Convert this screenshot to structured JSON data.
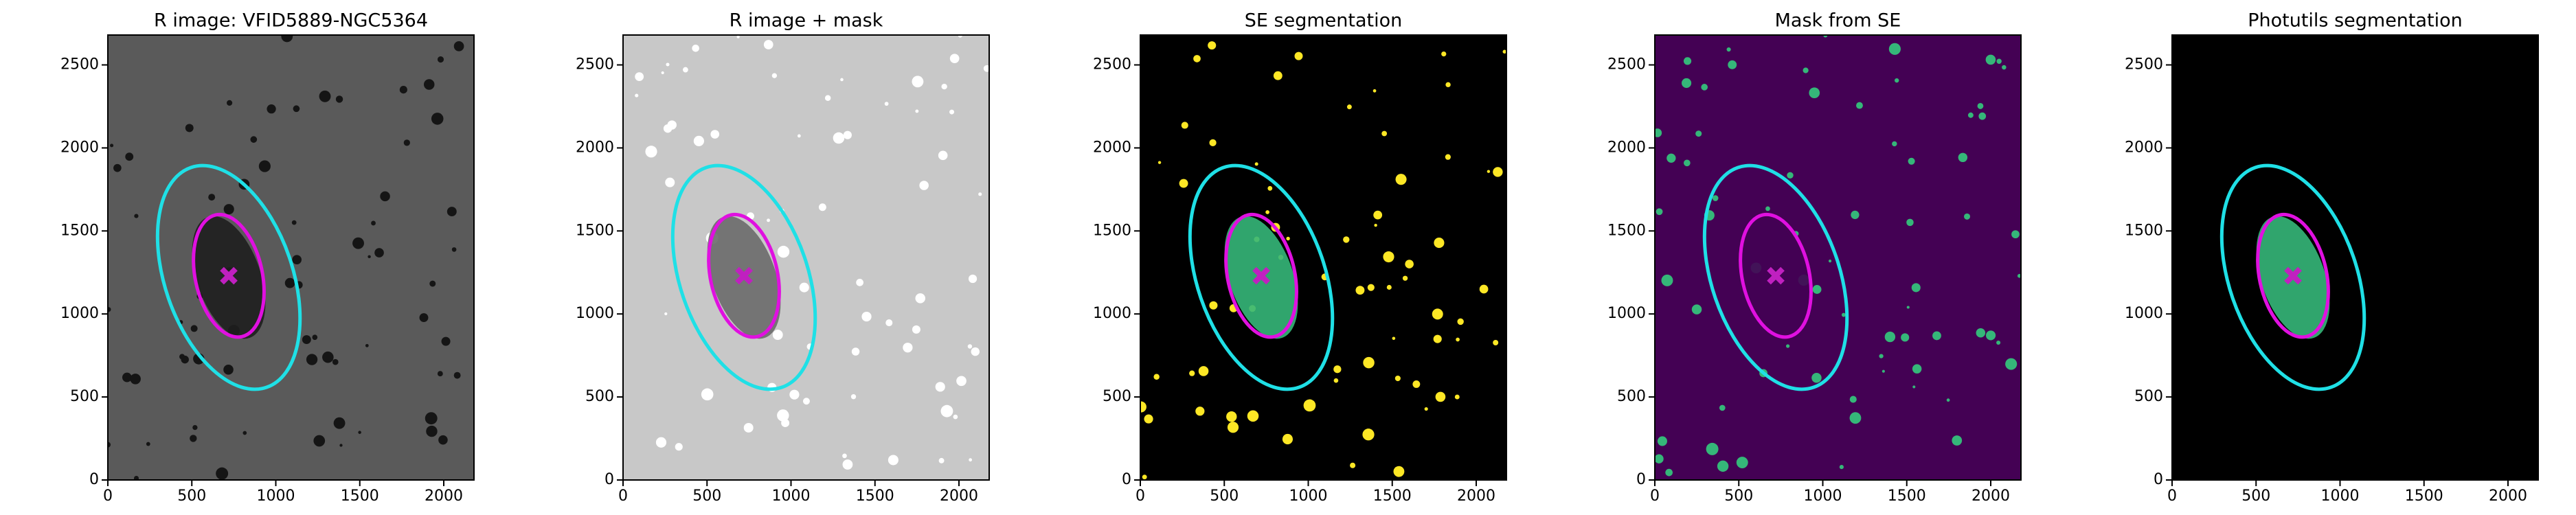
{
  "chart_data": [
    {
      "type": "image",
      "title": "R image: VFID5889-NGC5364",
      "background": "#5a5a5a",
      "blob_color": "#1e1e1e",
      "dot_color": "#151515",
      "xlim": [
        0,
        2180
      ],
      "ylim": [
        0,
        2680
      ],
      "xticks": [
        0,
        500,
        1000,
        1500,
        2000
      ],
      "yticks": [
        0,
        500,
        1000,
        1500,
        2000,
        2500
      ],
      "ellipses": [
        {
          "color": "#1fe0e6",
          "center": [
            720,
            1220
          ],
          "semi_axes": [
            380,
            700
          ],
          "angle": -19
        },
        {
          "color": "#e010e0",
          "center": [
            720,
            1230
          ],
          "semi_axes": [
            200,
            375
          ],
          "angle": -12
        }
      ],
      "marker": {
        "color": "#c020c0",
        "position": [
          720,
          1230
        ]
      }
    },
    {
      "type": "image",
      "title": "R image + mask",
      "background": "#c8c8c8",
      "blob_color": "#6a6a6a",
      "dot_color": "#ffffff",
      "xlim": [
        0,
        2180
      ],
      "ylim": [
        0,
        2680
      ],
      "xticks": [
        0,
        500,
        1000,
        1500,
        2000
      ],
      "yticks": [
        0,
        500,
        1000,
        1500,
        2000,
        2500
      ],
      "ellipses": [
        {
          "color": "#1fe0e6",
          "center": [
            720,
            1220
          ],
          "semi_axes": [
            380,
            700
          ],
          "angle": -19
        },
        {
          "color": "#e010e0",
          "center": [
            720,
            1230
          ],
          "semi_axes": [
            200,
            375
          ],
          "angle": -12
        }
      ],
      "marker": {
        "color": "#c020c0",
        "position": [
          720,
          1230
        ]
      }
    },
    {
      "type": "image",
      "title": "SE segmentation",
      "background": "#000000",
      "blob_color": "#35b779",
      "dot_color": "#fde725",
      "xlim": [
        0,
        2180
      ],
      "ylim": [
        0,
        2680
      ],
      "xticks": [
        0,
        500,
        1000,
        1500,
        2000
      ],
      "yticks": [
        0,
        500,
        1000,
        1500,
        2000,
        2500
      ],
      "ellipses": [
        {
          "color": "#1fe0e6",
          "center": [
            720,
            1220
          ],
          "semi_axes": [
            380,
            700
          ],
          "angle": -19
        },
        {
          "color": "#e010e0",
          "center": [
            720,
            1230
          ],
          "semi_axes": [
            200,
            375
          ],
          "angle": -12
        }
      ],
      "marker": {
        "color": "#c020c0",
        "position": [
          720,
          1230
        ]
      }
    },
    {
      "type": "image",
      "title": "Mask from SE",
      "background": "#440154",
      "blob_color": "#440154",
      "dot_color": "#35b779",
      "xlim": [
        0,
        2180
      ],
      "ylim": [
        0,
        2680
      ],
      "xticks": [
        0,
        500,
        1000,
        1500,
        2000
      ],
      "yticks": [
        0,
        500,
        1000,
        1500,
        2000,
        2500
      ],
      "ellipses": [
        {
          "color": "#1fe0e6",
          "center": [
            720,
            1220
          ],
          "semi_axes": [
            380,
            700
          ],
          "angle": -19
        },
        {
          "color": "#e010e0",
          "center": [
            720,
            1230
          ],
          "semi_axes": [
            200,
            375
          ],
          "angle": -12
        }
      ],
      "marker": {
        "color": "#c020c0",
        "position": [
          720,
          1230
        ]
      }
    },
    {
      "type": "image",
      "title": "Photutils segmentation",
      "background": "#000000",
      "blob_color": "#35b779",
      "dot_color": "#000000",
      "xlim": [
        0,
        2180
      ],
      "ylim": [
        0,
        2680
      ],
      "xticks": [
        0,
        500,
        1000,
        1500,
        2000
      ],
      "yticks": [
        0,
        500,
        1000,
        1500,
        2000,
        2500
      ],
      "ellipses": [
        {
          "color": "#1fe0e6",
          "center": [
            720,
            1220
          ],
          "semi_axes": [
            380,
            700
          ],
          "angle": -19
        },
        {
          "color": "#e010e0",
          "center": [
            720,
            1230
          ],
          "semi_axes": [
            200,
            375
          ],
          "angle": -12
        }
      ],
      "marker": {
        "color": "#c020c0",
        "position": [
          720,
          1230
        ]
      }
    }
  ]
}
